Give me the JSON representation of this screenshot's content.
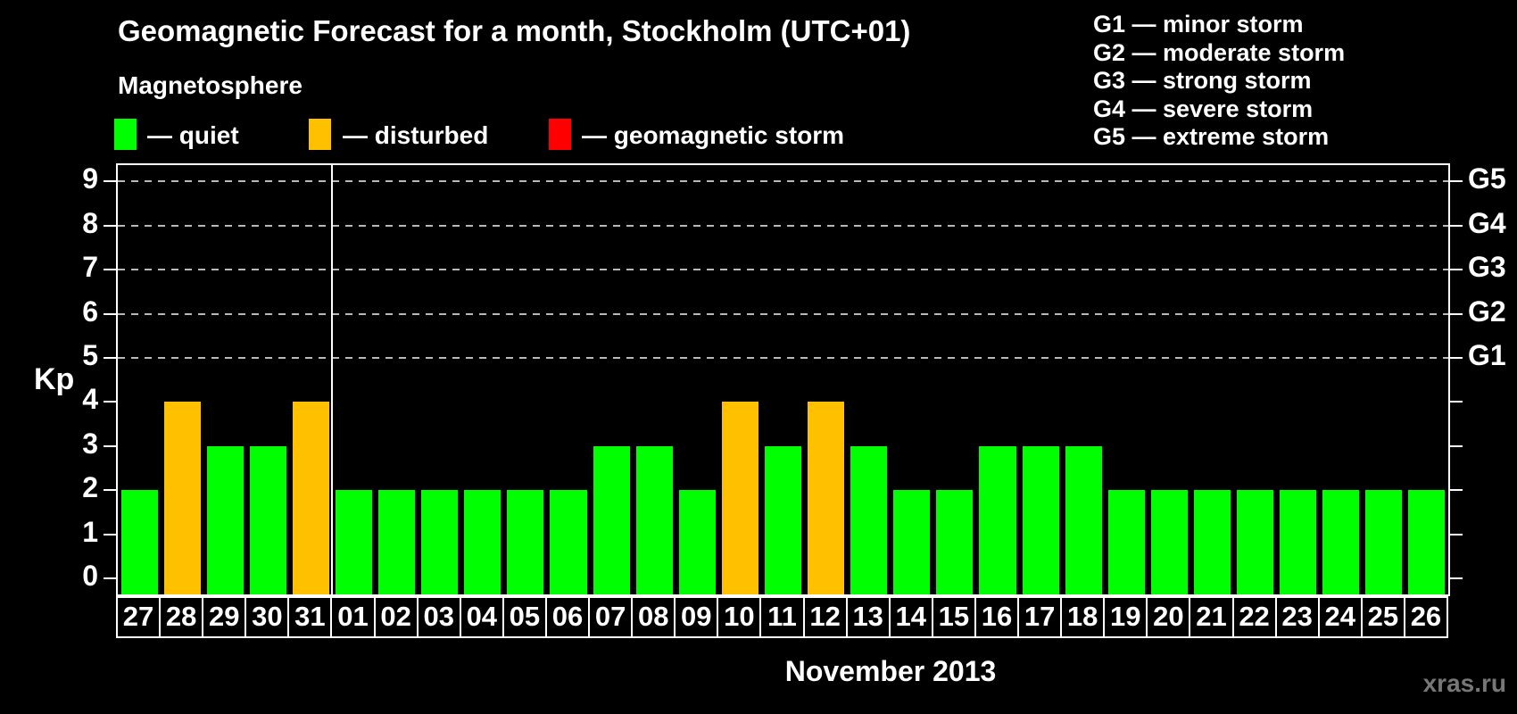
{
  "title": "Geomagnetic Forecast for a month, Stockholm (UTC+01)",
  "subtitle": "Magnetosphere",
  "legend": {
    "items": [
      {
        "key": "quiet",
        "label": "— quiet"
      },
      {
        "key": "disturbed",
        "label": "— disturbed"
      },
      {
        "key": "storm",
        "label": "— geomagnetic storm"
      }
    ]
  },
  "g_scale_legend": {
    "lines": [
      "G1 — minor storm",
      "G2 — moderate storm",
      "G3 — strong storm",
      "G4 — severe storm",
      "G5 — extreme storm"
    ]
  },
  "palette": {
    "quiet": "#00ff00",
    "disturbed": "#ffc000",
    "storm": "#ff0000",
    "gridline": "#b9b9b9",
    "axis": "#ffffff",
    "watermark": "#777777"
  },
  "watermark": "xras.ru",
  "chart_data": {
    "type": "bar",
    "title": "Geomagnetic Forecast for a month, Stockholm (UTC+01)",
    "ylabel": "Kp",
    "ylim": [
      0,
      9
    ],
    "yticks": [
      0,
      1,
      2,
      3,
      4,
      5,
      6,
      7,
      8,
      9
    ],
    "gridlines_at": [
      5,
      6,
      7,
      8,
      9
    ],
    "grid": "dashed",
    "legend_position": "top",
    "month_label": "November 2013",
    "right_axis_labels": [
      {
        "kp": 5,
        "label": "G1"
      },
      {
        "kp": 6,
        "label": "G2"
      },
      {
        "kp": 7,
        "label": "G3"
      },
      {
        "kp": 8,
        "label": "G4"
      },
      {
        "kp": 9,
        "label": "G5"
      }
    ],
    "month_boundary_after_index": 4,
    "categories": [
      "27",
      "28",
      "29",
      "30",
      "31",
      "01",
      "02",
      "03",
      "04",
      "05",
      "06",
      "07",
      "08",
      "09",
      "10",
      "11",
      "12",
      "13",
      "14",
      "15",
      "16",
      "17",
      "18",
      "19",
      "20",
      "21",
      "22",
      "23",
      "24",
      "25",
      "26"
    ],
    "values": [
      2,
      4,
      3,
      3,
      4,
      2,
      2,
      2,
      2,
      2,
      2,
      3,
      3,
      2,
      4,
      3,
      4,
      3,
      2,
      2,
      3,
      3,
      3,
      2,
      2,
      2,
      2,
      2,
      2,
      2,
      2
    ],
    "conditions": [
      "quiet",
      "disturbed",
      "quiet",
      "quiet",
      "disturbed",
      "quiet",
      "quiet",
      "quiet",
      "quiet",
      "quiet",
      "quiet",
      "quiet",
      "quiet",
      "quiet",
      "disturbed",
      "quiet",
      "disturbed",
      "quiet",
      "quiet",
      "quiet",
      "quiet",
      "quiet",
      "quiet",
      "quiet",
      "quiet",
      "quiet",
      "quiet",
      "quiet",
      "quiet",
      "quiet",
      "quiet"
    ]
  }
}
